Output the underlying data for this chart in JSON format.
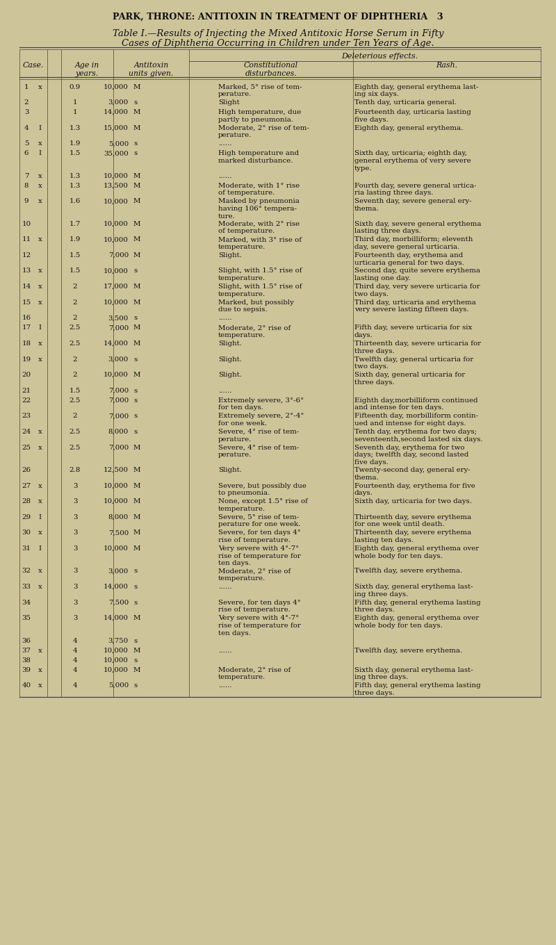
{
  "bg_color": "#cec49a",
  "text_color": "#111111",
  "line_color": "#444444",
  "page_header": "PARK, THRONE: ANTITOXIN IN TREATMENT OF DIPHTHERIA   3",
  "table_title_line1": "Table I.—Results of Injecting the Mixed Antitoxic Horse Serum in Fifty",
  "table_title_line2": "Cases of Diphtheria Occurring in Children under Ten Years of Age.",
  "rows": [
    [
      "1",
      "x",
      "0.9",
      "10,000",
      "M",
      "Marked, 5° rise of tem-\nperature.",
      "Eighth day, general erythema last-\ning six days."
    ],
    [
      "2",
      "",
      "1",
      "3,000",
      "s",
      "Slight",
      "Tenth day, urticaria general."
    ],
    [
      "3",
      "",
      "1",
      "14,000",
      "M",
      "High temperature, due\npartly to pneumonia.",
      "Fourteenth day, urticaria lasting\nfive days."
    ],
    [
      "4",
      "I",
      "1.3",
      "15,000",
      "M",
      "Moderate, 2° rise of tem-\nperature.",
      "Eighth day, general erythema."
    ],
    [
      "5",
      "x",
      "1.9",
      "5,000",
      "s",
      "......",
      ""
    ],
    [
      "6",
      "I",
      "1.5",
      "35,000",
      "s",
      "High temperature and\nmarked disturbance.",
      "Sixth day, urticaria; eighth day,\ngeneral erythema of very severe\ntype."
    ],
    [
      "7",
      "x",
      "1.3",
      "10,000",
      "M",
      "......",
      ""
    ],
    [
      "8",
      "x",
      "1.3",
      "13,500",
      "M",
      "Moderate, with 1° rise\nof temperature.",
      "Fourth day, severe general urtica-\nria lasting three days."
    ],
    [
      "9",
      "x",
      "1.6",
      "10,000",
      "M",
      "Masked by pneumonia\nhaving 106° tempera-\nture.",
      "Seventh day, severe general ery-\nthema."
    ],
    [
      "10",
      "",
      "1.7",
      "10,000",
      "M",
      "Moderate, with 2° rise\nof temperature.",
      "Sixth day, severe general erythema\nlasting three days."
    ],
    [
      "11",
      "x",
      "1.9",
      "10,000",
      "M",
      "Marked, with 3° rise of\ntemperature.",
      "Third day, morbilliform; eleventh\nday, severe general urticaria."
    ],
    [
      "12",
      "",
      "1.5",
      "7,000",
      "M",
      "Slight.",
      "Fourteenth day, erythema and\nurticaria general for two days."
    ],
    [
      "13",
      "x",
      "1.5",
      "10,000",
      "s",
      "Slight, with 1.5° rise of\ntemperature.",
      "Second day, quite severe erythema\nlasting one day."
    ],
    [
      "14",
      "x",
      "2",
      "17,000",
      "M",
      "Slight, with 1.5° rise of\ntemperature.",
      "Third day, very severe urticaria for\ntwo days."
    ],
    [
      "15",
      "x",
      "2",
      "10,000",
      "M",
      "Marked, but possibly\ndue to sepsis.",
      "Third day, urticaria and erythema\nvery severe lasting fifteen days."
    ],
    [
      "16",
      "",
      "2",
      "3,500",
      "s",
      "......",
      ""
    ],
    [
      "17",
      "I",
      "2.5",
      "7,000",
      "M",
      "Moderate, 2° rise of\ntemperature.",
      "Fifth day, severe urticaria for six\ndays."
    ],
    [
      "18",
      "x",
      "2.5",
      "14,000",
      "M",
      "Slight.",
      "Thirteenth day, severe urticaria for\nthree days."
    ],
    [
      "19",
      "x",
      "2",
      "3,000",
      "s",
      "Slight.",
      "Twelfth day, general urticaria for\ntwo days."
    ],
    [
      "20",
      "",
      "2",
      "10,000",
      "M",
      "Slight.",
      "Sixth day, general urticaria for\nthree days."
    ],
    [
      "21",
      "",
      "1.5",
      "7,000",
      "s",
      "......",
      ""
    ],
    [
      "22",
      "",
      "2.5",
      "7,000",
      "s",
      "Extremely severe, 3°-6°\nfor ten days.",
      "Eighth day,morbilliform continued\nand intense for ten days."
    ],
    [
      "23",
      "",
      "2",
      "7,000",
      "s",
      "Extremely severe, 2°-4°\nfor one week.",
      "Fifteenth day, morbilliform contin-\nued and intense for eight days."
    ],
    [
      "24",
      "x",
      "2.5",
      "8,000",
      "s",
      "Severe, 4° rise of tem-\nperature.",
      "Tenth day, erythema for two days;\nseventeenth,second lasted six days."
    ],
    [
      "25",
      "x",
      "2.5",
      "7,000",
      "M",
      "Severe, 4° rise of tem-\nperature.",
      "Seventh day, erythema for two\ndays; twelfth day, second lasted\nfive days."
    ],
    [
      "26",
      "",
      "2.8",
      "12,500",
      "M",
      "Slight.",
      "Twenty-second day, general ery-\nthema."
    ],
    [
      "27",
      "x",
      "3",
      "10,000",
      "M",
      "Severe, but possibly due\nto pneumonia.",
      "Fourteenth day, erythema for five\ndays."
    ],
    [
      "28",
      "x",
      "3",
      "10,000",
      "M",
      "None, except 1.5° rise of\ntemperature.",
      "Sixth day, urticaria for two days."
    ],
    [
      "29",
      "I",
      "3",
      "8,000",
      "M",
      "Severe, 5° rise of tem-\nperature for one week.",
      "Thirteenth day, severe erythema\nfor one week until death."
    ],
    [
      "30",
      "x",
      "3",
      "7,500",
      "M",
      "Severe, for ten days 4°\nrise of temperature.",
      "Thirteenth day, severe erythema\nlasting ten days."
    ],
    [
      "31",
      "I",
      "3",
      "10,000",
      "M",
      "Very severe with 4°-7°\nrise of temperature for\nten days.",
      "Eighth day, general erythema over\nwhole body for ten days."
    ],
    [
      "32",
      "x",
      "3",
      "3,000",
      "s",
      "Moderate, 2° rise of\ntemperature.",
      "Twelfth day, severe erythema."
    ],
    [
      "33",
      "x",
      "3",
      "14,000",
      "s",
      "......",
      "Sixth day, general erythema last-\ning three days."
    ],
    [
      "34",
      "",
      "3",
      "7,500",
      "s",
      "Severe, for ten days 4°\nrise of temperature.",
      "Fifth day, general erythema lasting\nthree days."
    ],
    [
      "35",
      "",
      "3",
      "14,000",
      "M",
      "Very severe with 4°-7°\nrise of temperature for\nten days.",
      "Eighth day, general erythema over\nwhole body for ten days."
    ],
    [
      "36",
      "",
      "4",
      "3,750",
      "s",
      "",
      ""
    ],
    [
      "37",
      "x",
      "4",
      "10,000",
      "M",
      "......",
      "Twelfth day, severe erythema."
    ],
    [
      "38",
      "",
      "4",
      "10,000",
      "s",
      "",
      ""
    ],
    [
      "39",
      "x",
      "4",
      "10,000",
      "M",
      "Moderate, 2° rise of\ntemperature.",
      "Sixth day, general erythema last-\ning three days."
    ],
    [
      "40",
      "x",
      "4",
      "5,000",
      "s",
      "......",
      "Fifth day, general erythema lasting\nthree days."
    ]
  ]
}
